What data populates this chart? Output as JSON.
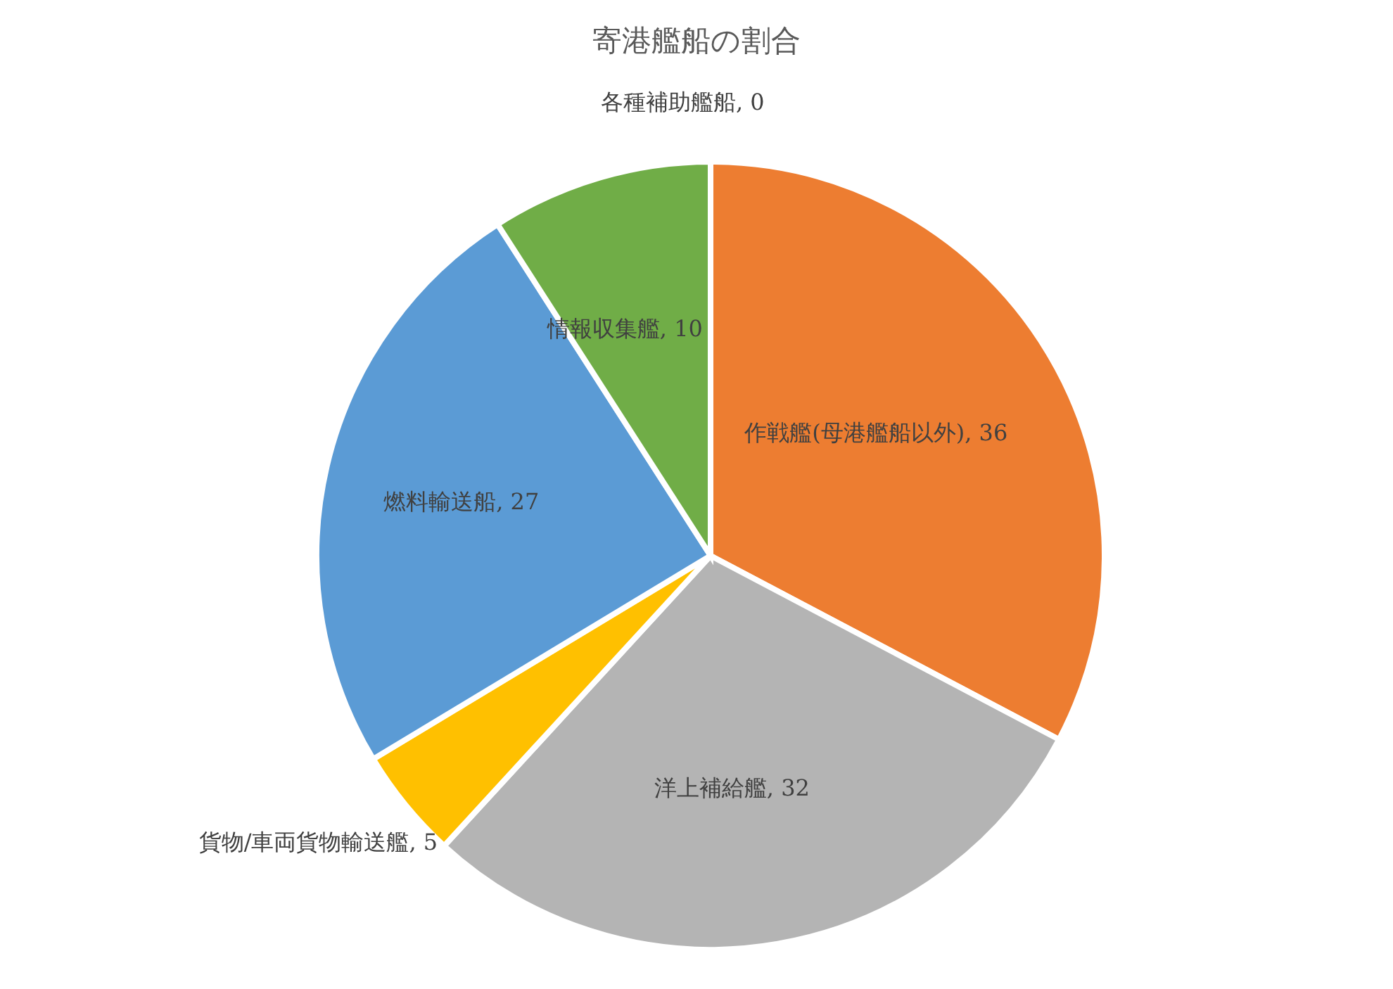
{
  "chart_data": {
    "type": "pie",
    "title": "寄港艦船の割合",
    "categories": [
      "作戦艦(母港艦船以外)",
      "洋上補給艦",
      "貨物/車両貨物輸送艦",
      "燃料輸送船",
      "情報収集艦",
      "各種補助艦船"
    ],
    "values": [
      36,
      32,
      5,
      27,
      10,
      0
    ],
    "value_labels": [
      ", 36",
      ", 32",
      ", 5",
      ", 27",
      ", 10",
      ", 0"
    ],
    "colors": [
      "#ed7d31",
      "#b4b4b4",
      "#ffc000",
      "#5b9bd5",
      "#70ad47",
      "#4472c4"
    ]
  }
}
